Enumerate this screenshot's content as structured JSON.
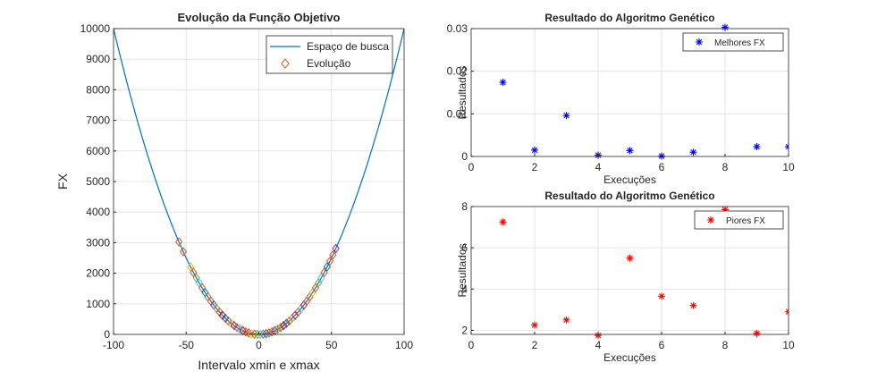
{
  "figure": {
    "background": "#ffffff"
  },
  "chart_data": [
    {
      "type": "scatter",
      "title": "Evolução da Função Objetivo",
      "xlabel": "Intervalo xmin e xmax",
      "ylabel": "FX",
      "xlim": [
        -100,
        100
      ],
      "ylim": [
        0,
        10000
      ],
      "xticks": [
        "-100",
        "-50",
        "0",
        "50",
        "100"
      ],
      "yticks": [
        "0",
        "1000",
        "2000",
        "3000",
        "4000",
        "5000",
        "6000",
        "7000",
        "8000",
        "9000",
        "10000"
      ],
      "grid": true,
      "legend": {
        "placement": "top-right",
        "entries": [
          {
            "label": "Espaço de busca",
            "color": "#0072bd",
            "marker": "line"
          },
          {
            "label": "Evolução",
            "color": "#d95319",
            "marker": "diamond"
          }
        ]
      },
      "series": [
        {
          "name": "Espaço de busca",
          "kind": "line",
          "function": "x^2",
          "color": "#0072bd"
        },
        {
          "name": "Evolução",
          "kind": "scatter",
          "marker": "diamond",
          "color": "#d95319",
          "x": [
            -55,
            -52,
            -47,
            -45,
            -43,
            -41,
            -39,
            -37,
            -35,
            -33,
            -31,
            -29,
            -27,
            -25,
            -23,
            -21,
            -19,
            -17,
            -15,
            -13,
            -11,
            -9,
            -7,
            -5,
            -3,
            -1,
            1,
            3,
            5,
            7,
            9,
            11,
            13,
            15,
            17,
            19,
            21,
            23,
            25,
            27,
            29,
            31,
            33,
            35,
            37,
            39,
            41,
            43,
            45,
            47,
            49,
            51,
            53
          ],
          "marker_palette": [
            "#0072bd",
            "#d95319",
            "#edb120",
            "#7e2f8e",
            "#77ac30",
            "#4dbeee",
            "#a2142f"
          ]
        }
      ]
    },
    {
      "type": "scatter",
      "title": "Resultado do Algoritmo Genético",
      "xlabel": "Execuções",
      "ylabel": "Resultados",
      "xlim": [
        0,
        10
      ],
      "ylim": [
        0,
        0.03
      ],
      "xticks": [
        "0",
        "2",
        "4",
        "6",
        "8",
        "10"
      ],
      "yticks": [
        "0",
        "0.01",
        "0.02",
        "0.03"
      ],
      "grid": true,
      "legend": {
        "placement": "top-right",
        "entries": [
          {
            "label": "Melhores FX",
            "color": "#0000ff",
            "marker": "asterisk"
          }
        ]
      },
      "series": [
        {
          "name": "Melhores FX",
          "marker": "asterisk",
          "color": "#0000ff",
          "x": [
            1,
            2,
            3,
            4,
            5,
            6,
            7,
            8,
            9,
            10
          ],
          "y": [
            0.0174,
            0.0015,
            0.0096,
            0.0003,
            0.0014,
            0.0001,
            0.001,
            0.0303,
            0.0023,
            0.0023
          ]
        }
      ]
    },
    {
      "type": "scatter",
      "title": "Resultado do Algoritmo Genético",
      "xlabel": "Execuções",
      "ylabel": "Resultados",
      "xlim": [
        0,
        10
      ],
      "ylim": [
        1.8,
        8
      ],
      "xticks": [
        "0",
        "2",
        "4",
        "6",
        "8",
        "10"
      ],
      "yticks": [
        "2",
        "4",
        "6",
        "8"
      ],
      "grid": true,
      "legend": {
        "placement": "top-right",
        "entries": [
          {
            "label": "Piores FX",
            "color": "#ff0000",
            "marker": "asterisk"
          }
        ]
      },
      "series": [
        {
          "name": "Piores FX",
          "marker": "asterisk",
          "color": "#ff0000",
          "x": [
            1,
            2,
            3,
            4,
            5,
            6,
            7,
            8,
            9,
            10
          ],
          "y": [
            7.25,
            2.25,
            2.5,
            1.75,
            5.5,
            3.65,
            3.2,
            7.85,
            1.85,
            2.9
          ]
        }
      ]
    }
  ]
}
